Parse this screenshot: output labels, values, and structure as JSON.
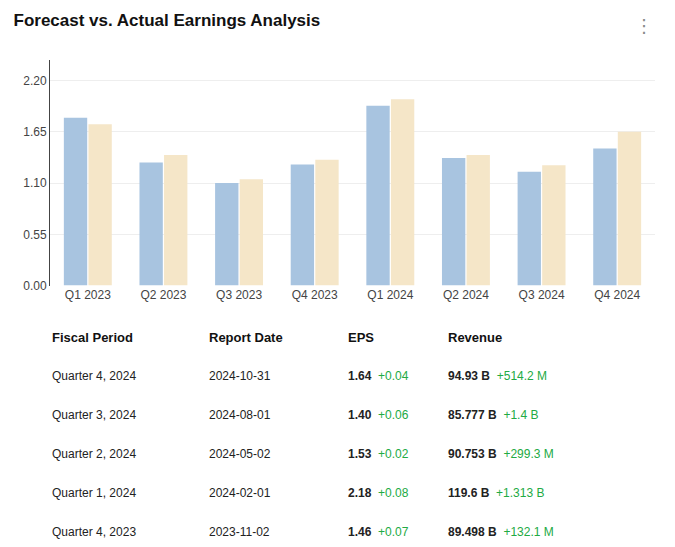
{
  "chart_data": {
    "type": "bar",
    "title": "Forecast vs. Actual Earnings Analysis",
    "categories": [
      "Q1 2023",
      "Q2 2023",
      "Q3 2023",
      "Q4 2023",
      "Q1 2024",
      "Q2 2024",
      "Q3 2024",
      "Q4 2024"
    ],
    "series": [
      {
        "color": "#a8c4e0",
        "values": [
          1.8,
          1.32,
          1.1,
          1.3,
          1.93,
          1.37,
          1.22,
          1.47
        ]
      },
      {
        "color": "#f5e6c8",
        "values": [
          1.73,
          1.4,
          1.14,
          1.35,
          2.0,
          1.4,
          1.29,
          1.65
        ]
      }
    ],
    "ylim": [
      0,
      2.42
    ],
    "yticks": [
      {
        "value": 0,
        "label": "0.00"
      },
      0.55,
      {
        "value": 1.1,
        "label": "1.10"
      },
      1.65,
      {
        "value": 2.2,
        "label": "2.20"
      }
    ],
    "grid": true,
    "annotations": [
      {
        "text": "⋮"
      }
    ],
    "table": {
      "headers": [
        "Fiscal Period",
        "Report Date",
        "EPS",
        "Revenue"
      ],
      "rows": [
        [
          "Quarter 4, 2024",
          "2024-10-31",
          "1.64",
          "+0.04",
          "94.93 B",
          "+514.2 M"
        ],
        [
          "Quarter 3, 2024",
          "2024-08-01",
          "1.40",
          "+0.06",
          "85.777 B",
          "+1.4 B"
        ],
        [
          "Quarter 2, 2024",
          "2024-05-02",
          "1.53",
          "+0.02",
          "90.753 B",
          "+299.3 M"
        ],
        [
          "Quarter 1, 2024",
          "2024-02-01",
          "2.18",
          "+0.08",
          "119.6 B",
          "+1.313 B"
        ],
        [
          "Quarter 4, 2023",
          "2023-11-02",
          "1.46",
          "+0.07",
          "89.498 B",
          "+132.1 M"
        ]
      ],
      "delta_color": "#22aa44"
    }
  }
}
